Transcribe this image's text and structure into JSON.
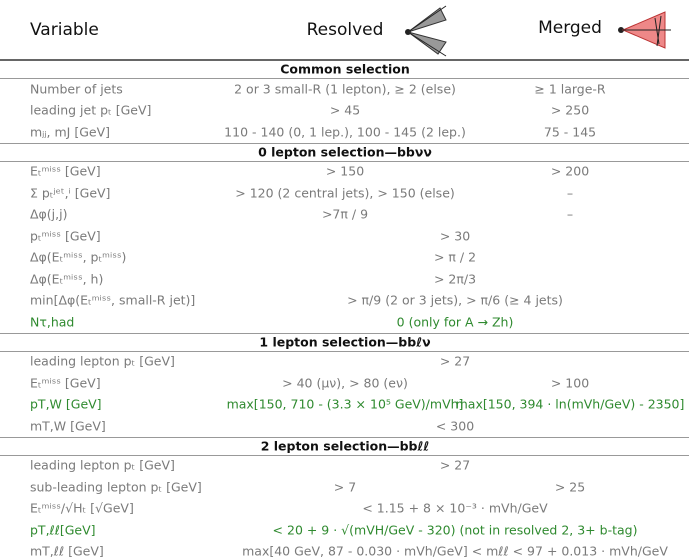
{
  "header": {
    "variable": "Variable",
    "resolved": "Resolved",
    "merged": "Merged"
  },
  "sections": [
    {
      "title": "Common selection",
      "rows": [
        {
          "label": "Number of jets",
          "resolved": "2 or 3 small-R (1 lepton), ≥ 2 (else)",
          "merged": "≥ 1 large-R"
        },
        {
          "label": "leading jet pₜ [GeV]",
          "resolved": "> 45",
          "merged": "> 250"
        },
        {
          "label": "mⱼⱼ, mJ [GeV]",
          "resolved": "110 - 140 (0, 1 lep.), 100 - 145 (2 lep.)",
          "merged": "75 - 145"
        }
      ]
    },
    {
      "title": "0 lepton selection—bbνν",
      "rows": [
        {
          "label": "Eₜᵐⁱˢˢ [GeV]",
          "resolved": "> 150",
          "merged": "> 200"
        },
        {
          "label": "Σ pₜʲᵉᵗ,ⁱ [GeV]",
          "resolved": "> 120 (2 central jets), > 150 (else)",
          "merged": "–"
        },
        {
          "label": "Δφ(j,j)",
          "resolved": ">7π / 9",
          "merged": "–"
        },
        {
          "label": "pₜᵐⁱˢˢ [GeV]",
          "span": "> 30"
        },
        {
          "label": "Δφ(Eₜᵐⁱˢˢ, pₜᵐⁱˢˢ)",
          "span": "> π / 2"
        },
        {
          "label": "Δφ(Eₜᵐⁱˢˢ, h)",
          "span": "> 2π/3"
        },
        {
          "label": "min[Δφ(Eₜᵐⁱˢˢ, small-R jet)]",
          "span": "> π/9 (2 or 3 jets), > π/6 (≥ 4 jets)"
        },
        {
          "label": "Nτ,had",
          "span": "0 (only for A → Zh)",
          "highlight": true
        }
      ]
    },
    {
      "title": "1 lepton selection—bbℓν",
      "rows": [
        {
          "label": "leading lepton pₜ [GeV]",
          "span": "> 27"
        },
        {
          "label": "Eₜᵐⁱˢˢ [GeV]",
          "resolved": "> 40 (μν), > 80 (eν)",
          "merged": "> 100"
        },
        {
          "label": "pT,W [GeV]",
          "resolved": "max[150, 710 - (3.3 × 10⁵ GeV)/mVh]",
          "merged": "max[150, 394 · ln(mVh/GeV) - 2350]",
          "highlight": true
        },
        {
          "label": "mT,W [GeV]",
          "span": "< 300"
        }
      ]
    },
    {
      "title": "2 lepton selection—bbℓℓ",
      "rows": [
        {
          "label": "leading lepton pₜ [GeV]",
          "span": "> 27"
        },
        {
          "label": "sub-leading lepton pₜ [GeV]",
          "resolved": "> 7",
          "merged": "> 25"
        },
        {
          "label": "Eₜᵐⁱˢˢ/√Hₜ [√GeV]",
          "span": "< 1.15 + 8 × 10⁻³ · mVh/GeV"
        },
        {
          "label": "pT,ℓℓ[GeV]",
          "span": "< 20 + 9 · √(mVH/GeV - 320) (not in resolved 2, 3+ b-tag)",
          "highlight": true
        },
        {
          "label": "mT,ℓℓ [GeV]",
          "span": "max[40 GeV, 87 - 0.030 · mVh/GeV] < mℓℓ < 97 + 0.013 · mVh/GeV"
        }
      ]
    }
  ]
}
